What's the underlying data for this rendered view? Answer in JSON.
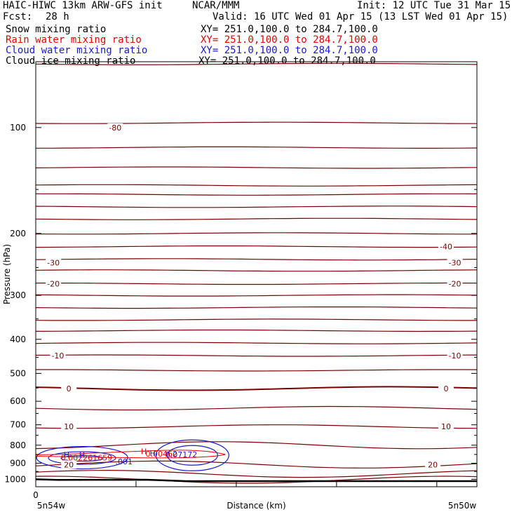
{
  "header": {
    "model": "HAIC-HIWC 13km ARW-GFS init",
    "org": "NCAR/MMM",
    "init": "Init: 12 UTC Tue 31 Mar 15",
    "fcst_label": "Fcst:",
    "fcst_value": "28 h",
    "valid": "Valid: 16 UTC Wed 01 Apr 15 (13 LST Wed 01 Apr 15)"
  },
  "fields": [
    {
      "label": "Snow mixing ratio",
      "xy": "XY= 251.0,100.0 to 284.7,100.0",
      "color": "#000000"
    },
    {
      "label": "Rain water mixing ratio",
      "xy": "XY= 251.0,100.0 to 284.7,100.0",
      "color": "#e60000"
    },
    {
      "label": "Cloud water mixing ratio",
      "xy": "XY= 251.0,100.0 to 284.7,100.0",
      "color": "#1a1acc"
    },
    {
      "label": "Cloud ice mixing ratio",
      "xy": "XY= 251.0,100.0 to 284.7,100.0",
      "color": "#000000"
    }
  ],
  "chart_data": {
    "type": "line",
    "xlabel": "Distance (km)",
    "ylabel": "Pressure (hPa)",
    "x_tick_labels": [
      "0"
    ],
    "x_end_labels": [
      "5n54w",
      "5n50w"
    ],
    "yticks": [
      100,
      200,
      300,
      400,
      500,
      600,
      700,
      800,
      900,
      1000
    ],
    "ylim": [
      1050,
      65
    ],
    "xlim": [
      0,
      1
    ],
    "y_log_scale": true,
    "temperature_color": "#7a0000",
    "terrain_color": "#000000",
    "cloud_water_color": "#1a1acc",
    "rain_color": "#e60000",
    "isotherms": [
      {
        "temp_c": -80,
        "labeled": true
      },
      {
        "temp_c": -40,
        "labeled": true
      },
      {
        "temp_c": -30,
        "labeled": true
      },
      {
        "temp_c": -20,
        "labeled": true
      },
      {
        "temp_c": -10,
        "labeled": true
      },
      {
        "temp_c": 0,
        "labeled": true
      },
      {
        "temp_c": 10,
        "labeled": true
      },
      {
        "temp_c": 20,
        "labeled": true
      }
    ],
    "temperature_lines_hpa": [
      66,
      97,
      114,
      130,
      146,
      155,
      168,
      182,
      200,
      218,
      237,
      255,
      278,
      300,
      325,
      352,
      378,
      410,
      445,
      490,
      552,
      628,
      708,
      800,
      908,
      965,
      1003
    ],
    "terrain_hpa_start": 1000,
    "terrain_hpa_end": 1012,
    "cloud_water_label": ".001",
    "markers": [
      {
        "text": "H",
        "color": "#1a1acc"
      },
      {
        "text": "H",
        "color": "#1a1acc"
      },
      {
        "text": "H",
        "color": "#e60000"
      },
      {
        "text": "H",
        "color": "#1a1acc"
      }
    ],
    "max_values": [
      {
        "text": "0.002261659",
        "color": "#e60000"
      },
      {
        "text": "0.00462",
        "color": "#e60000"
      },
      {
        "text": "0.07172",
        "color": "#1a1acc"
      }
    ]
  }
}
